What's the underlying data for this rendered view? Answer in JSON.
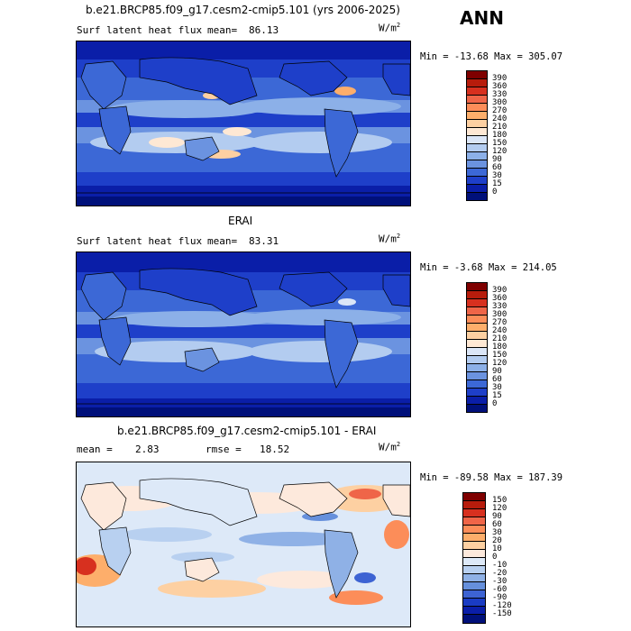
{
  "season": "ANN",
  "units_base": "W/m",
  "units_sup": "2",
  "panels": [
    {
      "title": "b.e21.BRCP85.f09_g17.cesm2-cmip5.101 (yrs 2006-2025)",
      "left_text": "Surf latent heat flux",
      "mean_label": "mean=",
      "mean_value": "86.13",
      "stats": "Min = -13.68 Max = 305.07",
      "levels": [
        "390",
        "360",
        "330",
        "300",
        "270",
        "240",
        "210",
        "180",
        "150",
        "120",
        "90",
        "60",
        "30",
        "15",
        "0"
      ]
    },
    {
      "title": "ERAI",
      "left_text": "Surf latent heat flux",
      "mean_label": "mean=",
      "mean_value": "83.31",
      "stats": "Min = -3.68 Max = 214.05",
      "levels": [
        "390",
        "360",
        "330",
        "300",
        "270",
        "240",
        "210",
        "180",
        "150",
        "120",
        "90",
        "60",
        "30",
        "15",
        "0"
      ]
    },
    {
      "title": "b.e21.BRCP85.f09_g17.cesm2-cmip5.101 - ERAI",
      "mean_label": "mean =",
      "mean_value": "2.83",
      "rmse_label": "rmse =",
      "rmse_value": "18.52",
      "stats": "Min = -89.58 Max = 187.39",
      "levels": [
        "150",
        "120",
        "90",
        "60",
        "30",
        "20",
        "10",
        "0",
        "-10",
        "-20",
        "-30",
        "-60",
        "-90",
        "-120",
        "-150"
      ]
    }
  ],
  "colors": {
    "abs_scale": [
      "#7f0000",
      "#b71c0c",
      "#d7301f",
      "#ef6548",
      "#fc8d59",
      "#fdae6b",
      "#fdd0a2",
      "#fee8d4",
      "#dbe6f7",
      "#b3ccf0",
      "#8cb0e8",
      "#6b93e0",
      "#3c68d6",
      "#1e3fc9",
      "#0a1ea8",
      "#00107a"
    ],
    "diff_scale": [
      "#7f0000",
      "#b71c0c",
      "#d7301f",
      "#ef6548",
      "#fc8d59",
      "#fdae6b",
      "#fdd0a2",
      "#fde9dc",
      "#dde9f8",
      "#b8d0f0",
      "#8fb1e6",
      "#6690dc",
      "#3d63d3",
      "#1a3cc4",
      "#0a1ea8",
      "#00107a"
    ]
  }
}
